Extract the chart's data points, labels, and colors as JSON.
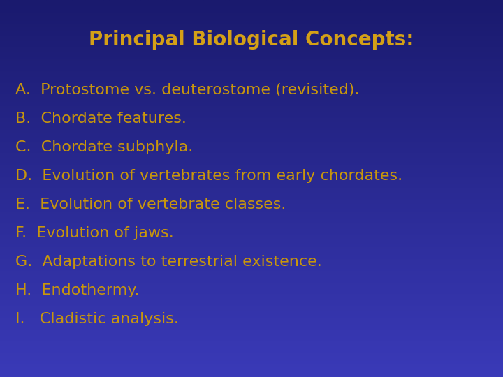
{
  "title": "Principal Biological Concepts:",
  "title_color": "#D4A017",
  "title_fontsize": 20,
  "title_fontstyle": "bold",
  "items": [
    "A.  Protostome vs. deuterostome (revisited).",
    "B.  Chordate features.",
    "C.  Chordate subphyla.",
    "D.  Evolution of vertebrates from early chordates.",
    "E.  Evolution of vertebrate classes.",
    "F.  Evolution of jaws.",
    "G.  Adaptations to terrestrial existence.",
    "H.  Endothermy.",
    "I.   Cladistic analysis."
  ],
  "item_color": "#C8960C",
  "item_fontsize": 16,
  "bg_color_top": "#1a1a6e",
  "bg_color_bottom": "#3a3ab8",
  "figwidth": 7.2,
  "figheight": 5.4,
  "dpi": 100
}
